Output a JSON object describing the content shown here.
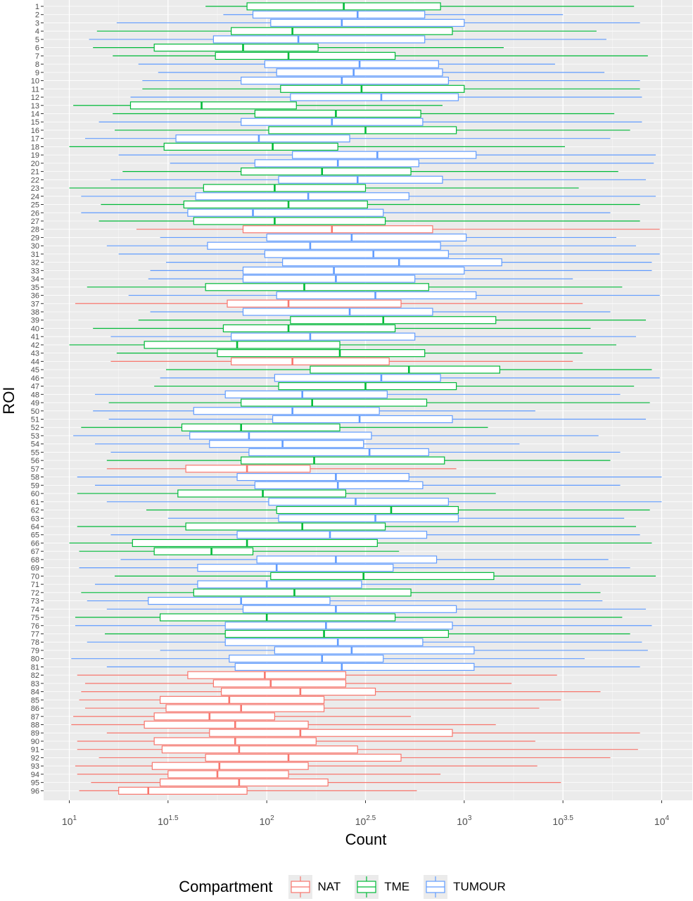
{
  "chart_data": {
    "type": "boxplot",
    "title": "",
    "xlabel": "Count",
    "ylabel": "ROI",
    "x_scale": "log10",
    "xlim": [
      10,
      10000
    ],
    "x_ticks": [
      {
        "value": 10,
        "base": "10",
        "exp": "1"
      },
      {
        "value": 31.62,
        "base": "10",
        "exp": "1.5"
      },
      {
        "value": 100,
        "base": "10",
        "exp": "2"
      },
      {
        "value": 316.2,
        "base": "10",
        "exp": "2.5"
      },
      {
        "value": 1000,
        "base": "10",
        "exp": "3"
      },
      {
        "value": 3162,
        "base": "10",
        "exp": "3.5"
      },
      {
        "value": 10000,
        "base": "10",
        "exp": "4"
      }
    ],
    "legend": {
      "title": "Compartment",
      "position": "bottom",
      "items": [
        {
          "label": "NAT",
          "color": "#F8766D"
        },
        {
          "label": "TME",
          "color": "#00BA38"
        },
        {
          "label": "TUMOUR",
          "color": "#619CFF"
        }
      ]
    },
    "colors": {
      "NAT": "#F8766D",
      "TME": "#00BA38",
      "TUMOUR": "#619CFF"
    },
    "background": "#EBEBEB",
    "grid": true,
    "rois": [
      {
        "roi": "1",
        "compartment": "TME",
        "min": 1.69,
        "q1": 1.9,
        "median": 2.39,
        "q3": 2.88,
        "max": 3.86
      },
      {
        "roi": "2",
        "compartment": "TUMOUR",
        "min": 1.78,
        "q1": 1.93,
        "median": 2.46,
        "q3": 2.8,
        "max": 3.5
      },
      {
        "roi": "3",
        "compartment": "TUMOUR",
        "min": 1.24,
        "q1": 2.02,
        "median": 2.38,
        "q3": 3.0,
        "max": 3.89
      },
      {
        "roi": "4",
        "compartment": "TME",
        "min": 1.14,
        "q1": 1.82,
        "median": 2.13,
        "q3": 2.94,
        "max": 3.67
      },
      {
        "roi": "5",
        "compartment": "TUMOUR",
        "min": 1.1,
        "q1": 1.73,
        "median": 2.16,
        "q3": 2.8,
        "max": 3.72
      },
      {
        "roi": "6",
        "compartment": "TME",
        "min": 1.12,
        "q1": 1.43,
        "median": 1.88,
        "q3": 2.26,
        "max": 3.2
      },
      {
        "roi": "7",
        "compartment": "TME",
        "min": 1.22,
        "q1": 1.74,
        "median": 2.11,
        "q3": 2.65,
        "max": 3.93
      },
      {
        "roi": "8",
        "compartment": "TUMOUR",
        "min": 1.35,
        "q1": 1.99,
        "median": 2.47,
        "q3": 2.87,
        "max": 3.46
      },
      {
        "roi": "9",
        "compartment": "TUMOUR",
        "min": 1.45,
        "q1": 2.05,
        "median": 2.44,
        "q3": 2.89,
        "max": 3.71
      },
      {
        "roi": "10",
        "compartment": "TUMOUR",
        "min": 1.37,
        "q1": 1.87,
        "median": 2.38,
        "q3": 2.92,
        "max": 3.89
      },
      {
        "roi": "11",
        "compartment": "TME",
        "min": 1.37,
        "q1": 2.07,
        "median": 2.48,
        "q3": 3.0,
        "max": 3.89
      },
      {
        "roi": "12",
        "compartment": "TUMOUR",
        "min": 1.31,
        "q1": 2.12,
        "median": 2.58,
        "q3": 2.97,
        "max": 3.9
      },
      {
        "roi": "13",
        "compartment": "TME",
        "min": 1.02,
        "q1": 1.31,
        "median": 1.67,
        "q3": 2.15,
        "max": 2.89
      },
      {
        "roi": "14",
        "compartment": "TME",
        "min": 1.22,
        "q1": 1.94,
        "median": 2.35,
        "q3": 2.78,
        "max": 3.76
      },
      {
        "roi": "15",
        "compartment": "TUMOUR",
        "min": 1.15,
        "q1": 1.87,
        "median": 2.33,
        "q3": 2.79,
        "max": 3.9
      },
      {
        "roi": "16",
        "compartment": "TME",
        "min": 1.23,
        "q1": 2.01,
        "median": 2.5,
        "q3": 2.96,
        "max": 3.84
      },
      {
        "roi": "17",
        "compartment": "TUMOUR",
        "min": 1.08,
        "q1": 1.54,
        "median": 1.96,
        "q3": 2.42,
        "max": 3.74
      },
      {
        "roi": "18",
        "compartment": "TME",
        "min": 1.0,
        "q1": 1.48,
        "median": 2.03,
        "q3": 2.36,
        "max": 3.51
      },
      {
        "roi": "19",
        "compartment": "TUMOUR",
        "min": 1.25,
        "q1": 2.13,
        "median": 2.56,
        "q3": 3.06,
        "max": 3.97
      },
      {
        "roi": "20",
        "compartment": "TUMOUR",
        "min": 1.51,
        "q1": 1.94,
        "median": 2.36,
        "q3": 2.77,
        "max": 3.96
      },
      {
        "roi": "21",
        "compartment": "TME",
        "min": 1.27,
        "q1": 1.87,
        "median": 2.28,
        "q3": 2.73,
        "max": 3.78
      },
      {
        "roi": "22",
        "compartment": "TUMOUR",
        "min": 1.21,
        "q1": 2.06,
        "median": 2.46,
        "q3": 2.89,
        "max": 3.92
      },
      {
        "roi": "23",
        "compartment": "TME",
        "min": 1.0,
        "q1": 1.68,
        "median": 2.04,
        "q3": 2.5,
        "max": 3.58
      },
      {
        "roi": "24",
        "compartment": "TUMOUR",
        "min": 1.06,
        "q1": 1.64,
        "median": 2.21,
        "q3": 2.72,
        "max": 3.97
      },
      {
        "roi": "25",
        "compartment": "TME",
        "min": 1.16,
        "q1": 1.58,
        "median": 2.11,
        "q3": 2.51,
        "max": 3.89
      },
      {
        "roi": "26",
        "compartment": "TUMOUR",
        "min": 1.06,
        "q1": 1.6,
        "median": 1.93,
        "q3": 2.59,
        "max": 3.74
      },
      {
        "roi": "27",
        "compartment": "TME",
        "min": 1.15,
        "q1": 1.63,
        "median": 2.04,
        "q3": 2.6,
        "max": 3.89
      },
      {
        "roi": "28",
        "compartment": "NAT",
        "min": 1.34,
        "q1": 1.88,
        "median": 2.33,
        "q3": 2.84,
        "max": 3.99
      },
      {
        "roi": "29",
        "compartment": "TUMOUR",
        "min": 1.46,
        "q1": 2.0,
        "median": 2.43,
        "q3": 3.01,
        "max": 3.77
      },
      {
        "roi": "30",
        "compartment": "TUMOUR",
        "min": 1.19,
        "q1": 1.7,
        "median": 2.22,
        "q3": 2.88,
        "max": 3.87
      },
      {
        "roi": "31",
        "compartment": "TUMOUR",
        "min": 1.25,
        "q1": 1.99,
        "median": 2.54,
        "q3": 2.92,
        "max": 3.99
      },
      {
        "roi": "32",
        "compartment": "TUMOUR",
        "min": 1.49,
        "q1": 2.08,
        "median": 2.67,
        "q3": 3.19,
        "max": 3.95
      },
      {
        "roi": "33",
        "compartment": "TUMOUR",
        "min": 1.41,
        "q1": 1.88,
        "median": 2.34,
        "q3": 3.0,
        "max": 3.95
      },
      {
        "roi": "34",
        "compartment": "TUMOUR",
        "min": 1.4,
        "q1": 1.88,
        "median": 2.35,
        "q3": 2.75,
        "max": 3.55
      },
      {
        "roi": "35",
        "compartment": "TME",
        "min": 1.09,
        "q1": 1.69,
        "median": 2.19,
        "q3": 2.82,
        "max": 3.8
      },
      {
        "roi": "36",
        "compartment": "TUMOUR",
        "min": 1.3,
        "q1": 2.05,
        "median": 2.55,
        "q3": 3.06,
        "max": 3.99
      },
      {
        "roi": "37",
        "compartment": "NAT",
        "min": 1.03,
        "q1": 1.8,
        "median": 2.11,
        "q3": 2.68,
        "max": 3.6
      },
      {
        "roi": "38",
        "compartment": "TUMOUR",
        "min": 1.41,
        "q1": 1.88,
        "median": 2.42,
        "q3": 2.84,
        "max": 3.74
      },
      {
        "roi": "39",
        "compartment": "TME",
        "min": 1.35,
        "q1": 2.12,
        "median": 2.59,
        "q3": 3.16,
        "max": 3.92
      },
      {
        "roi": "40",
        "compartment": "TME",
        "min": 1.12,
        "q1": 1.78,
        "median": 2.11,
        "q3": 2.65,
        "max": 3.64
      },
      {
        "roi": "41",
        "compartment": "TUMOUR",
        "min": 1.21,
        "q1": 1.82,
        "median": 2.22,
        "q3": 2.75,
        "max": 3.87
      },
      {
        "roi": "42",
        "compartment": "TME",
        "min": 1.0,
        "q1": 1.38,
        "median": 1.85,
        "q3": 2.37,
        "max": 3.77
      },
      {
        "roi": "43",
        "compartment": "TME",
        "min": 1.24,
        "q1": 1.75,
        "median": 2.37,
        "q3": 2.8,
        "max": 3.6
      },
      {
        "roi": "44",
        "compartment": "NAT",
        "min": 1.21,
        "q1": 1.82,
        "median": 2.13,
        "q3": 2.62,
        "max": 3.55
      },
      {
        "roi": "45",
        "compartment": "TME",
        "min": 1.49,
        "q1": 2.22,
        "median": 2.72,
        "q3": 3.18,
        "max": 3.95
      },
      {
        "roi": "46",
        "compartment": "TUMOUR",
        "min": 1.46,
        "q1": 2.04,
        "median": 2.58,
        "q3": 2.88,
        "max": 3.99
      },
      {
        "roi": "47",
        "compartment": "TME",
        "min": 1.43,
        "q1": 2.06,
        "median": 2.5,
        "q3": 2.96,
        "max": 3.86
      },
      {
        "roi": "48",
        "compartment": "TUMOUR",
        "min": 1.13,
        "q1": 1.79,
        "median": 2.18,
        "q3": 2.61,
        "max": 3.79
      },
      {
        "roi": "49",
        "compartment": "TME",
        "min": 1.2,
        "q1": 1.87,
        "median": 2.23,
        "q3": 2.81,
        "max": 3.94
      },
      {
        "roi": "50",
        "compartment": "TUMOUR",
        "min": 1.12,
        "q1": 1.63,
        "median": 2.13,
        "q3": 2.57,
        "max": 3.36
      },
      {
        "roi": "51",
        "compartment": "TUMOUR",
        "min": 1.2,
        "q1": 2.03,
        "median": 2.47,
        "q3": 2.94,
        "max": 3.92
      },
      {
        "roi": "52",
        "compartment": "TME",
        "min": 1.06,
        "q1": 1.57,
        "median": 1.87,
        "q3": 2.37,
        "max": 3.12
      },
      {
        "roi": "53",
        "compartment": "TUMOUR",
        "min": 1.02,
        "q1": 1.61,
        "median": 1.91,
        "q3": 2.53,
        "max": 3.68
      },
      {
        "roi": "54",
        "compartment": "TUMOUR",
        "min": 1.13,
        "q1": 1.71,
        "median": 2.08,
        "q3": 2.49,
        "max": 3.28
      },
      {
        "roi": "55",
        "compartment": "TUMOUR",
        "min": 1.21,
        "q1": 1.91,
        "median": 2.52,
        "q3": 2.82,
        "max": 3.79
      },
      {
        "roi": "56",
        "compartment": "TME",
        "min": 1.19,
        "q1": 1.87,
        "median": 2.24,
        "q3": 2.9,
        "max": 3.74
      },
      {
        "roi": "57",
        "compartment": "NAT",
        "min": 1.19,
        "q1": 1.59,
        "median": 1.9,
        "q3": 2.22,
        "max": 2.96
      },
      {
        "roi": "58",
        "compartment": "TUMOUR",
        "min": 1.04,
        "q1": 1.85,
        "median": 2.35,
        "q3": 2.72,
        "max": 4.0
      },
      {
        "roi": "59",
        "compartment": "TUMOUR",
        "min": 1.13,
        "q1": 1.94,
        "median": 2.36,
        "q3": 2.79,
        "max": 3.79
      },
      {
        "roi": "60",
        "compartment": "TME",
        "min": 1.04,
        "q1": 1.55,
        "median": 1.98,
        "q3": 2.4,
        "max": 3.16
      },
      {
        "roi": "61",
        "compartment": "TUMOUR",
        "min": 1.19,
        "q1": 2.01,
        "median": 2.45,
        "q3": 2.92,
        "max": 4.0
      },
      {
        "roi": "62",
        "compartment": "TME",
        "min": 1.39,
        "q1": 2.05,
        "median": 2.63,
        "q3": 2.97,
        "max": 3.94
      },
      {
        "roi": "63",
        "compartment": "TUMOUR",
        "min": 1.5,
        "q1": 2.06,
        "median": 2.55,
        "q3": 2.97,
        "max": 3.81
      },
      {
        "roi": "64",
        "compartment": "TME",
        "min": 1.04,
        "q1": 1.59,
        "median": 2.18,
        "q3": 2.6,
        "max": 3.87
      },
      {
        "roi": "65",
        "compartment": "TUMOUR",
        "min": 1.21,
        "q1": 1.85,
        "median": 2.32,
        "q3": 2.81,
        "max": 3.89
      },
      {
        "roi": "66",
        "compartment": "TME",
        "min": 1.0,
        "q1": 1.32,
        "median": 1.9,
        "q3": 2.56,
        "max": 3.95
      },
      {
        "roi": "67",
        "compartment": "TME",
        "min": 1.05,
        "q1": 1.43,
        "median": 1.72,
        "q3": 1.93,
        "max": 2.67
      },
      {
        "roi": "68",
        "compartment": "TUMOUR",
        "min": 1.26,
        "q1": 1.95,
        "median": 2.35,
        "q3": 2.86,
        "max": 3.73
      },
      {
        "roi": "69",
        "compartment": "TUMOUR",
        "min": 1.05,
        "q1": 1.65,
        "median": 2.05,
        "q3": 2.64,
        "max": 3.84
      },
      {
        "roi": "70",
        "compartment": "TME",
        "min": 1.23,
        "q1": 2.02,
        "median": 2.49,
        "q3": 3.15,
        "max": 3.97
      },
      {
        "roi": "71",
        "compartment": "TUMOUR",
        "min": 1.13,
        "q1": 1.65,
        "median": 2.0,
        "q3": 2.48,
        "max": 3.59
      },
      {
        "roi": "72",
        "compartment": "TME",
        "min": 1.06,
        "q1": 1.63,
        "median": 2.14,
        "q3": 2.73,
        "max": 3.69
      },
      {
        "roi": "73",
        "compartment": "TUMOUR",
        "min": 1.09,
        "q1": 1.4,
        "median": 1.87,
        "q3": 2.32,
        "max": 3.7
      },
      {
        "roi": "74",
        "compartment": "TUMOUR",
        "min": 1.19,
        "q1": 1.88,
        "median": 2.35,
        "q3": 2.96,
        "max": 3.92
      },
      {
        "roi": "75",
        "compartment": "TME",
        "min": 1.03,
        "q1": 1.46,
        "median": 2.0,
        "q3": 2.65,
        "max": 3.8
      },
      {
        "roi": "76",
        "compartment": "TUMOUR",
        "min": 1.03,
        "q1": 1.79,
        "median": 2.3,
        "q3": 2.94,
        "max": 3.95
      },
      {
        "roi": "77",
        "compartment": "TME",
        "min": 1.18,
        "q1": 1.79,
        "median": 2.29,
        "q3": 2.92,
        "max": 3.84
      },
      {
        "roi": "78",
        "compartment": "TUMOUR",
        "min": 1.09,
        "q1": 1.79,
        "median": 2.36,
        "q3": 2.79,
        "max": 3.9
      },
      {
        "roi": "79",
        "compartment": "TUMOUR",
        "min": 1.46,
        "q1": 2.04,
        "median": 2.43,
        "q3": 3.05,
        "max": 3.93
      },
      {
        "roi": "80",
        "compartment": "TUMOUR",
        "min": 1.01,
        "q1": 1.81,
        "median": 2.28,
        "q3": 2.59,
        "max": 3.61
      },
      {
        "roi": "81",
        "compartment": "TUMOUR",
        "min": 1.19,
        "q1": 1.84,
        "median": 2.38,
        "q3": 3.05,
        "max": 3.89
      },
      {
        "roi": "82",
        "compartment": "NAT",
        "min": 1.04,
        "q1": 1.6,
        "median": 1.99,
        "q3": 2.4,
        "max": 3.47
      },
      {
        "roi": "83",
        "compartment": "NAT",
        "min": 1.08,
        "q1": 1.73,
        "median": 2.02,
        "q3": 2.4,
        "max": 3.24
      },
      {
        "roi": "84",
        "compartment": "NAT",
        "min": 1.06,
        "q1": 1.77,
        "median": 2.17,
        "q3": 2.55,
        "max": 3.69
      },
      {
        "roi": "85",
        "compartment": "NAT",
        "min": 1.05,
        "q1": 1.46,
        "median": 1.81,
        "q3": 2.29,
        "max": 3.49
      },
      {
        "roi": "86",
        "compartment": "NAT",
        "min": 1.08,
        "q1": 1.49,
        "median": 1.87,
        "q3": 2.29,
        "max": 3.38
      },
      {
        "roi": "87",
        "compartment": "NAT",
        "min": 1.02,
        "q1": 1.43,
        "median": 1.71,
        "q3": 2.04,
        "max": 2.73
      },
      {
        "roi": "88",
        "compartment": "NAT",
        "min": 1.01,
        "q1": 1.38,
        "median": 1.84,
        "q3": 2.21,
        "max": 3.16
      },
      {
        "roi": "89",
        "compartment": "NAT",
        "min": 1.19,
        "q1": 1.71,
        "median": 2.17,
        "q3": 2.94,
        "max": 3.89
      },
      {
        "roi": "90",
        "compartment": "NAT",
        "min": 1.04,
        "q1": 1.43,
        "median": 1.84,
        "q3": 2.25,
        "max": 3.36
      },
      {
        "roi": "91",
        "compartment": "NAT",
        "min": 1.04,
        "q1": 1.47,
        "median": 1.86,
        "q3": 2.46,
        "max": 3.88
      },
      {
        "roi": "92",
        "compartment": "NAT",
        "min": 1.15,
        "q1": 1.69,
        "median": 2.11,
        "q3": 2.68,
        "max": 3.74
      },
      {
        "roi": "93",
        "compartment": "NAT",
        "min": 1.03,
        "q1": 1.42,
        "median": 1.76,
        "q3": 2.21,
        "max": 3.37
      },
      {
        "roi": "94",
        "compartment": "NAT",
        "min": 1.04,
        "q1": 1.5,
        "median": 1.75,
        "q3": 2.11,
        "max": 2.88
      },
      {
        "roi": "95",
        "compartment": "NAT",
        "min": 1.11,
        "q1": 1.46,
        "median": 1.86,
        "q3": 2.31,
        "max": 3.49
      },
      {
        "roi": "96",
        "compartment": "NAT",
        "min": 1.05,
        "q1": 1.25,
        "median": 1.4,
        "q3": 1.9,
        "max": 2.76
      }
    ]
  }
}
